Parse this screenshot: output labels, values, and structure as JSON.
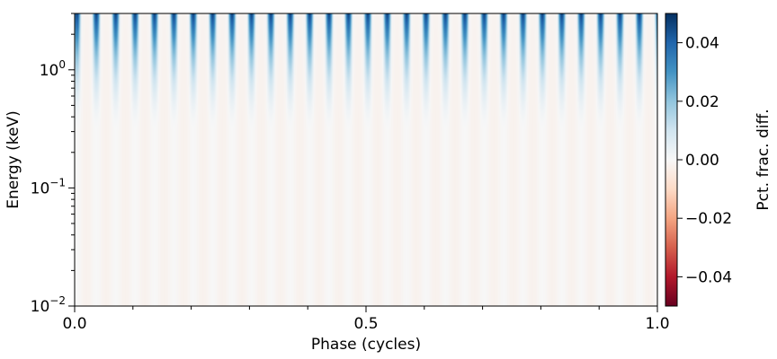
{
  "chart_data": {
    "type": "heatmap",
    "xlabel": "Phase (cycles)",
    "ylabel": "Energy (keV)",
    "colorbar_label": "Pct. frac. diff.",
    "colormap": "RdBu",
    "x_range": [
      0.0,
      1.0
    ],
    "y_range": [
      0.01,
      3.0
    ],
    "y_scale": "log",
    "x_ticks": [
      {
        "value": 0.0,
        "label": "0.0"
      },
      {
        "value": 0.5,
        "label": "0.5"
      },
      {
        "value": 1.0,
        "label": "1.0"
      }
    ],
    "x_minor_ticks": [
      0.1,
      0.2,
      0.3,
      0.4,
      0.6,
      0.7,
      0.8,
      0.9
    ],
    "y_ticks": [
      {
        "value": 0.01,
        "base": "10",
        "exp": "−2"
      },
      {
        "value": 0.1,
        "base": "10",
        "exp": "−1"
      },
      {
        "value": 1.0,
        "base": "10",
        "exp": "0"
      }
    ],
    "colorbar_range": [
      -0.05,
      0.05
    ],
    "colorbar_ticks": [
      {
        "value": 0.04,
        "label": "0.04"
      },
      {
        "value": 0.02,
        "label": "0.02"
      },
      {
        "value": 0.0,
        "label": "0.00"
      },
      {
        "value": -0.02,
        "label": "−0.02"
      },
      {
        "value": -0.04,
        "label": "−0.04"
      }
    ],
    "pattern": {
      "stripe_cycles": 30,
      "peak_value": 0.045,
      "negative_value": -0.004
    },
    "colors": {
      "dark_blue": "#053061",
      "blue": "#2166ac",
      "mid_blue": "#4393c3",
      "light_blue": "#92c5de",
      "pale_blue": "#d1e5f0",
      "white": "#f7f7f7",
      "pale_red": "#fddbc7",
      "light_red": "#f4a582",
      "mid_red": "#d6604d",
      "red": "#b2182b",
      "dark_red": "#67001f"
    }
  }
}
